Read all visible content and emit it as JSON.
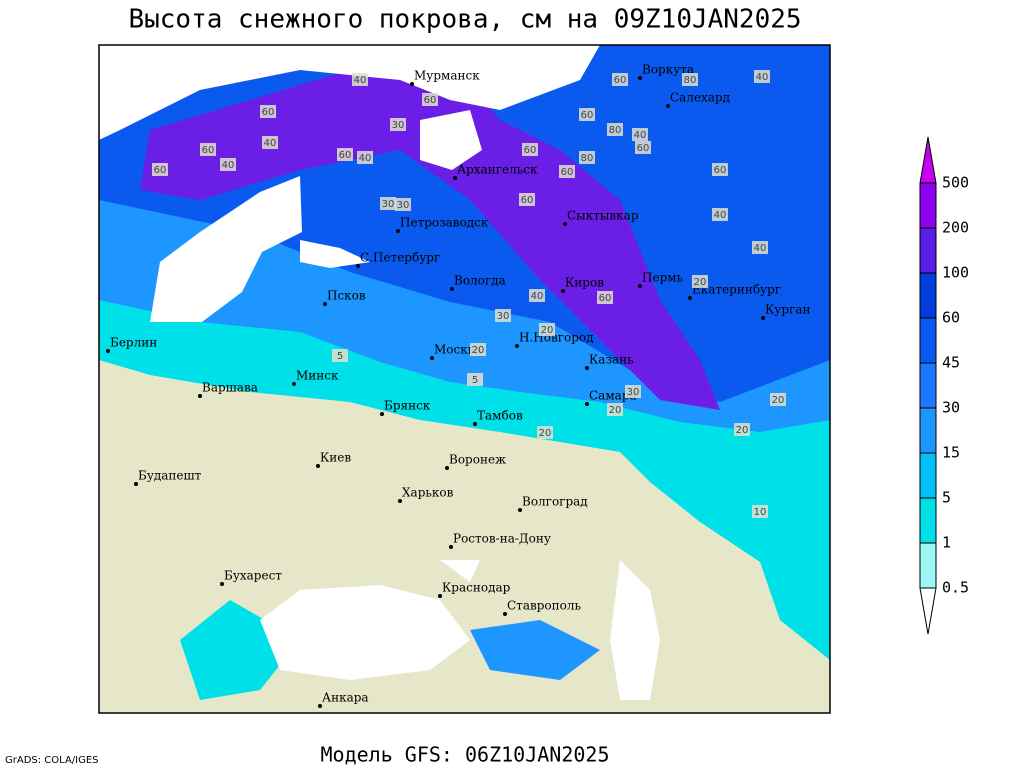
{
  "title": "Высота снежного покрова, см на 09Z10JAN2025",
  "footer": "Модель GFS: 06Z10JAN2025",
  "credit": "GrADS: COLA/IGES",
  "legend": {
    "levels": [
      0.5,
      1,
      5,
      15,
      30,
      45,
      60,
      100,
      200,
      500
    ],
    "colors": [
      "#ffffff",
      "#a0f5f5",
      "#00e0e8",
      "#00c0f5",
      "#1e96ff",
      "#1e78ff",
      "#0a5af0",
      "#003ce0",
      "#5a1ee6",
      "#8c00f0",
      "#c800f0"
    ]
  },
  "cities": [
    "Мурманск",
    "Воркута",
    "Салехард",
    "Архангельск",
    "Сыктывкар",
    "Петрозаводск",
    "С.Петербург",
    "Вологда",
    "Киров",
    "Пермь",
    "Екатеринбург",
    "Курган",
    "Псков",
    "Берлин",
    "Н.Новгород",
    "Москва",
    "Казань",
    "Минск",
    "Варшава",
    "Самара",
    "Брянск",
    "Тамбов",
    "Киев",
    "Воронеж",
    "Будапешт",
    "Харьков",
    "Волгоград",
    "Ростов-на-Дону",
    "Бухарест",
    "Краснодар",
    "Ставрополь",
    "Анкара"
  ],
  "contour_labels": [
    40,
    60,
    40,
    60,
    40,
    60,
    60,
    40,
    60,
    30,
    60,
    80,
    60,
    80,
    40,
    60,
    60,
    80,
    60,
    60,
    40,
    40,
    30,
    30,
    20,
    40,
    40,
    30,
    20,
    20,
    30,
    20,
    20,
    10,
    5,
    5,
    20,
    20,
    60,
    60
  ]
}
